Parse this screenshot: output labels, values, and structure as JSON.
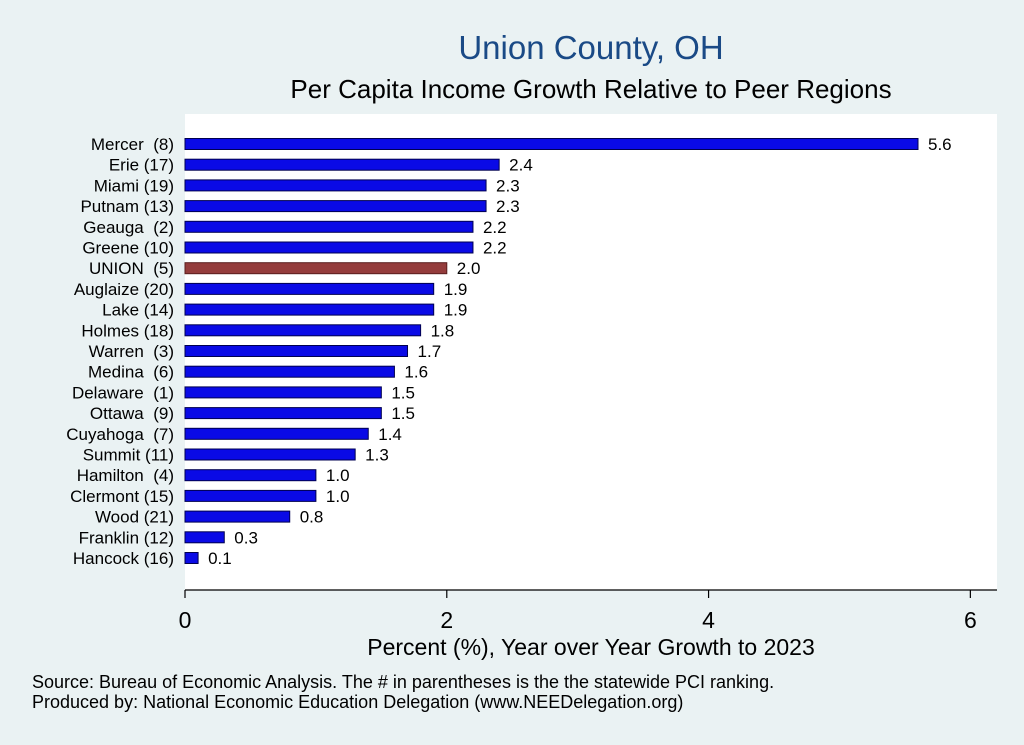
{
  "chart_data": {
    "type": "bar",
    "orientation": "horizontal",
    "title": "Union County, OH",
    "subtitle": "Per Capita Income Growth Relative to Peer Regions",
    "xlabel": "Percent (%), Year over Year Growth to 2023",
    "ylabel": "",
    "xlim": [
      0,
      6.2
    ],
    "xticks": [
      "0",
      "2",
      "4",
      "6"
    ],
    "grid": false,
    "highlight_color": "#943c3c",
    "bar_color": "#0a0ae6",
    "categories": [
      "Mercer  (8)",
      "Erie (17)",
      "Miami (19)",
      "Putnam (13)",
      "Geauga  (2)",
      "Greene (10)",
      "UNION  (5)",
      "Auglaize (20)",
      "Lake (14)",
      "Holmes (18)",
      "Warren  (3)",
      "Medina  (6)",
      "Delaware  (1)",
      "Ottawa  (9)",
      "Cuyahoga  (7)",
      "Summit (11)",
      "Hamilton  (4)",
      "Clermont (15)",
      "Wood (21)",
      "Franklin (12)",
      "Hancock (16)"
    ],
    "values": [
      5.6,
      2.4,
      2.3,
      2.3,
      2.2,
      2.2,
      2.0,
      1.9,
      1.9,
      1.8,
      1.7,
      1.6,
      1.5,
      1.5,
      1.4,
      1.3,
      1.0,
      1.0,
      0.8,
      0.3,
      0.1
    ],
    "value_labels": [
      "5.6",
      "2.4",
      "2.3",
      "2.3",
      "2.2",
      "2.2",
      "2.0",
      "1.9",
      "1.9",
      "1.8",
      "1.7",
      "1.6",
      "1.5",
      "1.5",
      "1.4",
      "1.3",
      "1.0",
      "1.0",
      "0.8",
      "0.3",
      "0.1"
    ],
    "highlight_category": "UNION  (5)"
  },
  "notes": {
    "source": "Source: Bureau of Economic Analysis. The # in parentheses is the the statewide PCI ranking.",
    "producer": "Produced by: National Economic Education Delegation (www.NEEDelegation.org)"
  }
}
